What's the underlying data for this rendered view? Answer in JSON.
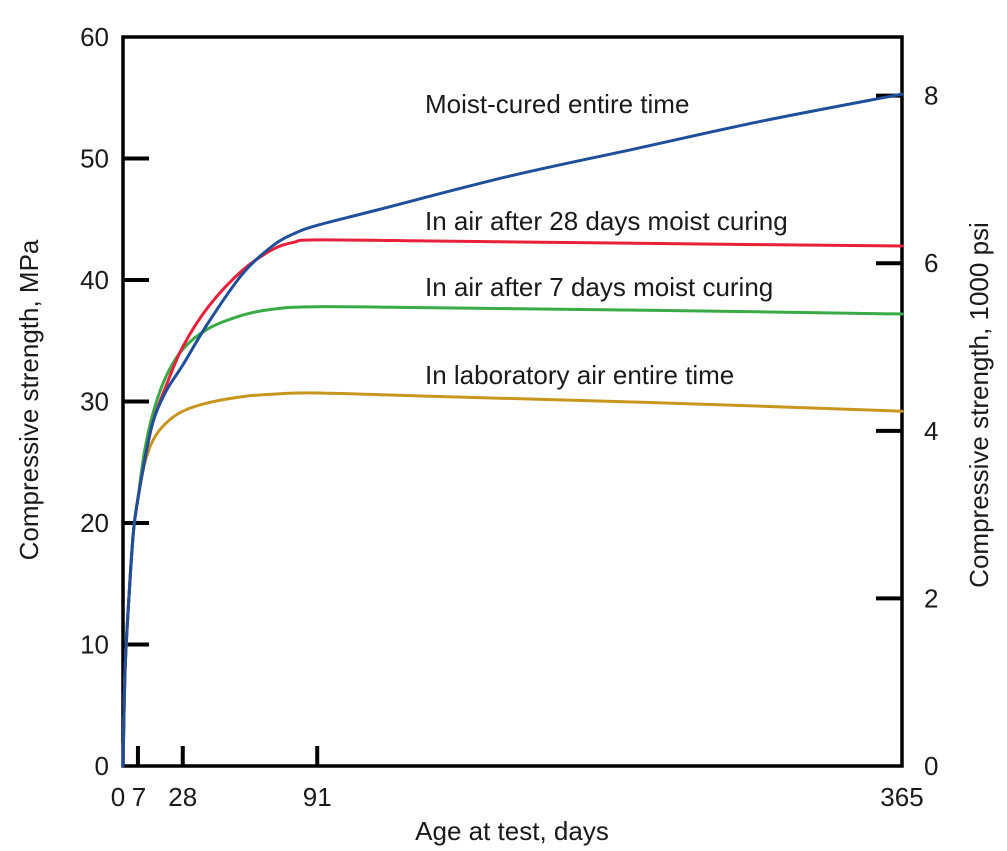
{
  "chart_data": {
    "type": "line",
    "xlabel": "Age at test, days",
    "ylabel": "Compressive strength, MPa",
    "y2label": "Compressive strength, 1000 psi",
    "xlim": [
      0,
      365
    ],
    "ylim": [
      0,
      60
    ],
    "y2lim": [
      0,
      8.7
    ],
    "x_ticks": [
      0,
      7,
      28,
      91,
      365
    ],
    "y_ticks": [
      0,
      10,
      20,
      30,
      40,
      50,
      60
    ],
    "y2_ticks": [
      0,
      2,
      4,
      6,
      8
    ],
    "grid": false,
    "series": [
      {
        "name": "Moist-cured entire time",
        "color": "#1f4e9a",
        "x": [
          0,
          1,
          3,
          5,
          7,
          10,
          14,
          20,
          28,
          40,
          56,
          70,
          80,
          91,
          120,
          180,
          240,
          300,
          365
        ],
        "y": [
          0,
          8,
          14.5,
          19.5,
          22,
          25,
          28.3,
          30.8,
          33,
          36.5,
          40.5,
          42.8,
          43.8,
          44.5,
          45.8,
          48.5,
          50.8,
          53.1,
          55.3
        ]
      },
      {
        "name": "In air after 28 days moist curing",
        "color": "#e8203a",
        "x": [
          0,
          1,
          3,
          5,
          7,
          10,
          14,
          20,
          28,
          40,
          56,
          70,
          80,
          91,
          150,
          250,
          365
        ],
        "y": [
          0,
          8,
          14.5,
          19.5,
          22,
          25,
          28.3,
          31.2,
          34.5,
          37.8,
          40.8,
          42.5,
          43.1,
          43.3,
          43.2,
          43,
          42.8
        ]
      },
      {
        "name": "In air after 7 days moist curing",
        "color": "#3aaa46",
        "x": [
          0,
          1,
          3,
          5,
          7,
          10,
          14,
          20,
          28,
          40,
          56,
          70,
          91,
          150,
          250,
          365
        ],
        "y": [
          0,
          8,
          14.5,
          19.5,
          22,
          25.8,
          29,
          32,
          34.3,
          36,
          37.1,
          37.6,
          37.8,
          37.7,
          37.5,
          37.2
        ]
      },
      {
        "name": "In laboratory air entire time",
        "color": "#c8951e",
        "x": [
          0,
          1,
          3,
          5,
          7,
          10,
          14,
          20,
          28,
          40,
          56,
          70,
          91,
          150,
          250,
          365
        ],
        "y": [
          0,
          8,
          14.5,
          19.5,
          22,
          24.8,
          26.8,
          28.2,
          29.2,
          29.9,
          30.4,
          30.6,
          30.7,
          30.4,
          29.9,
          29.2
        ]
      }
    ]
  }
}
